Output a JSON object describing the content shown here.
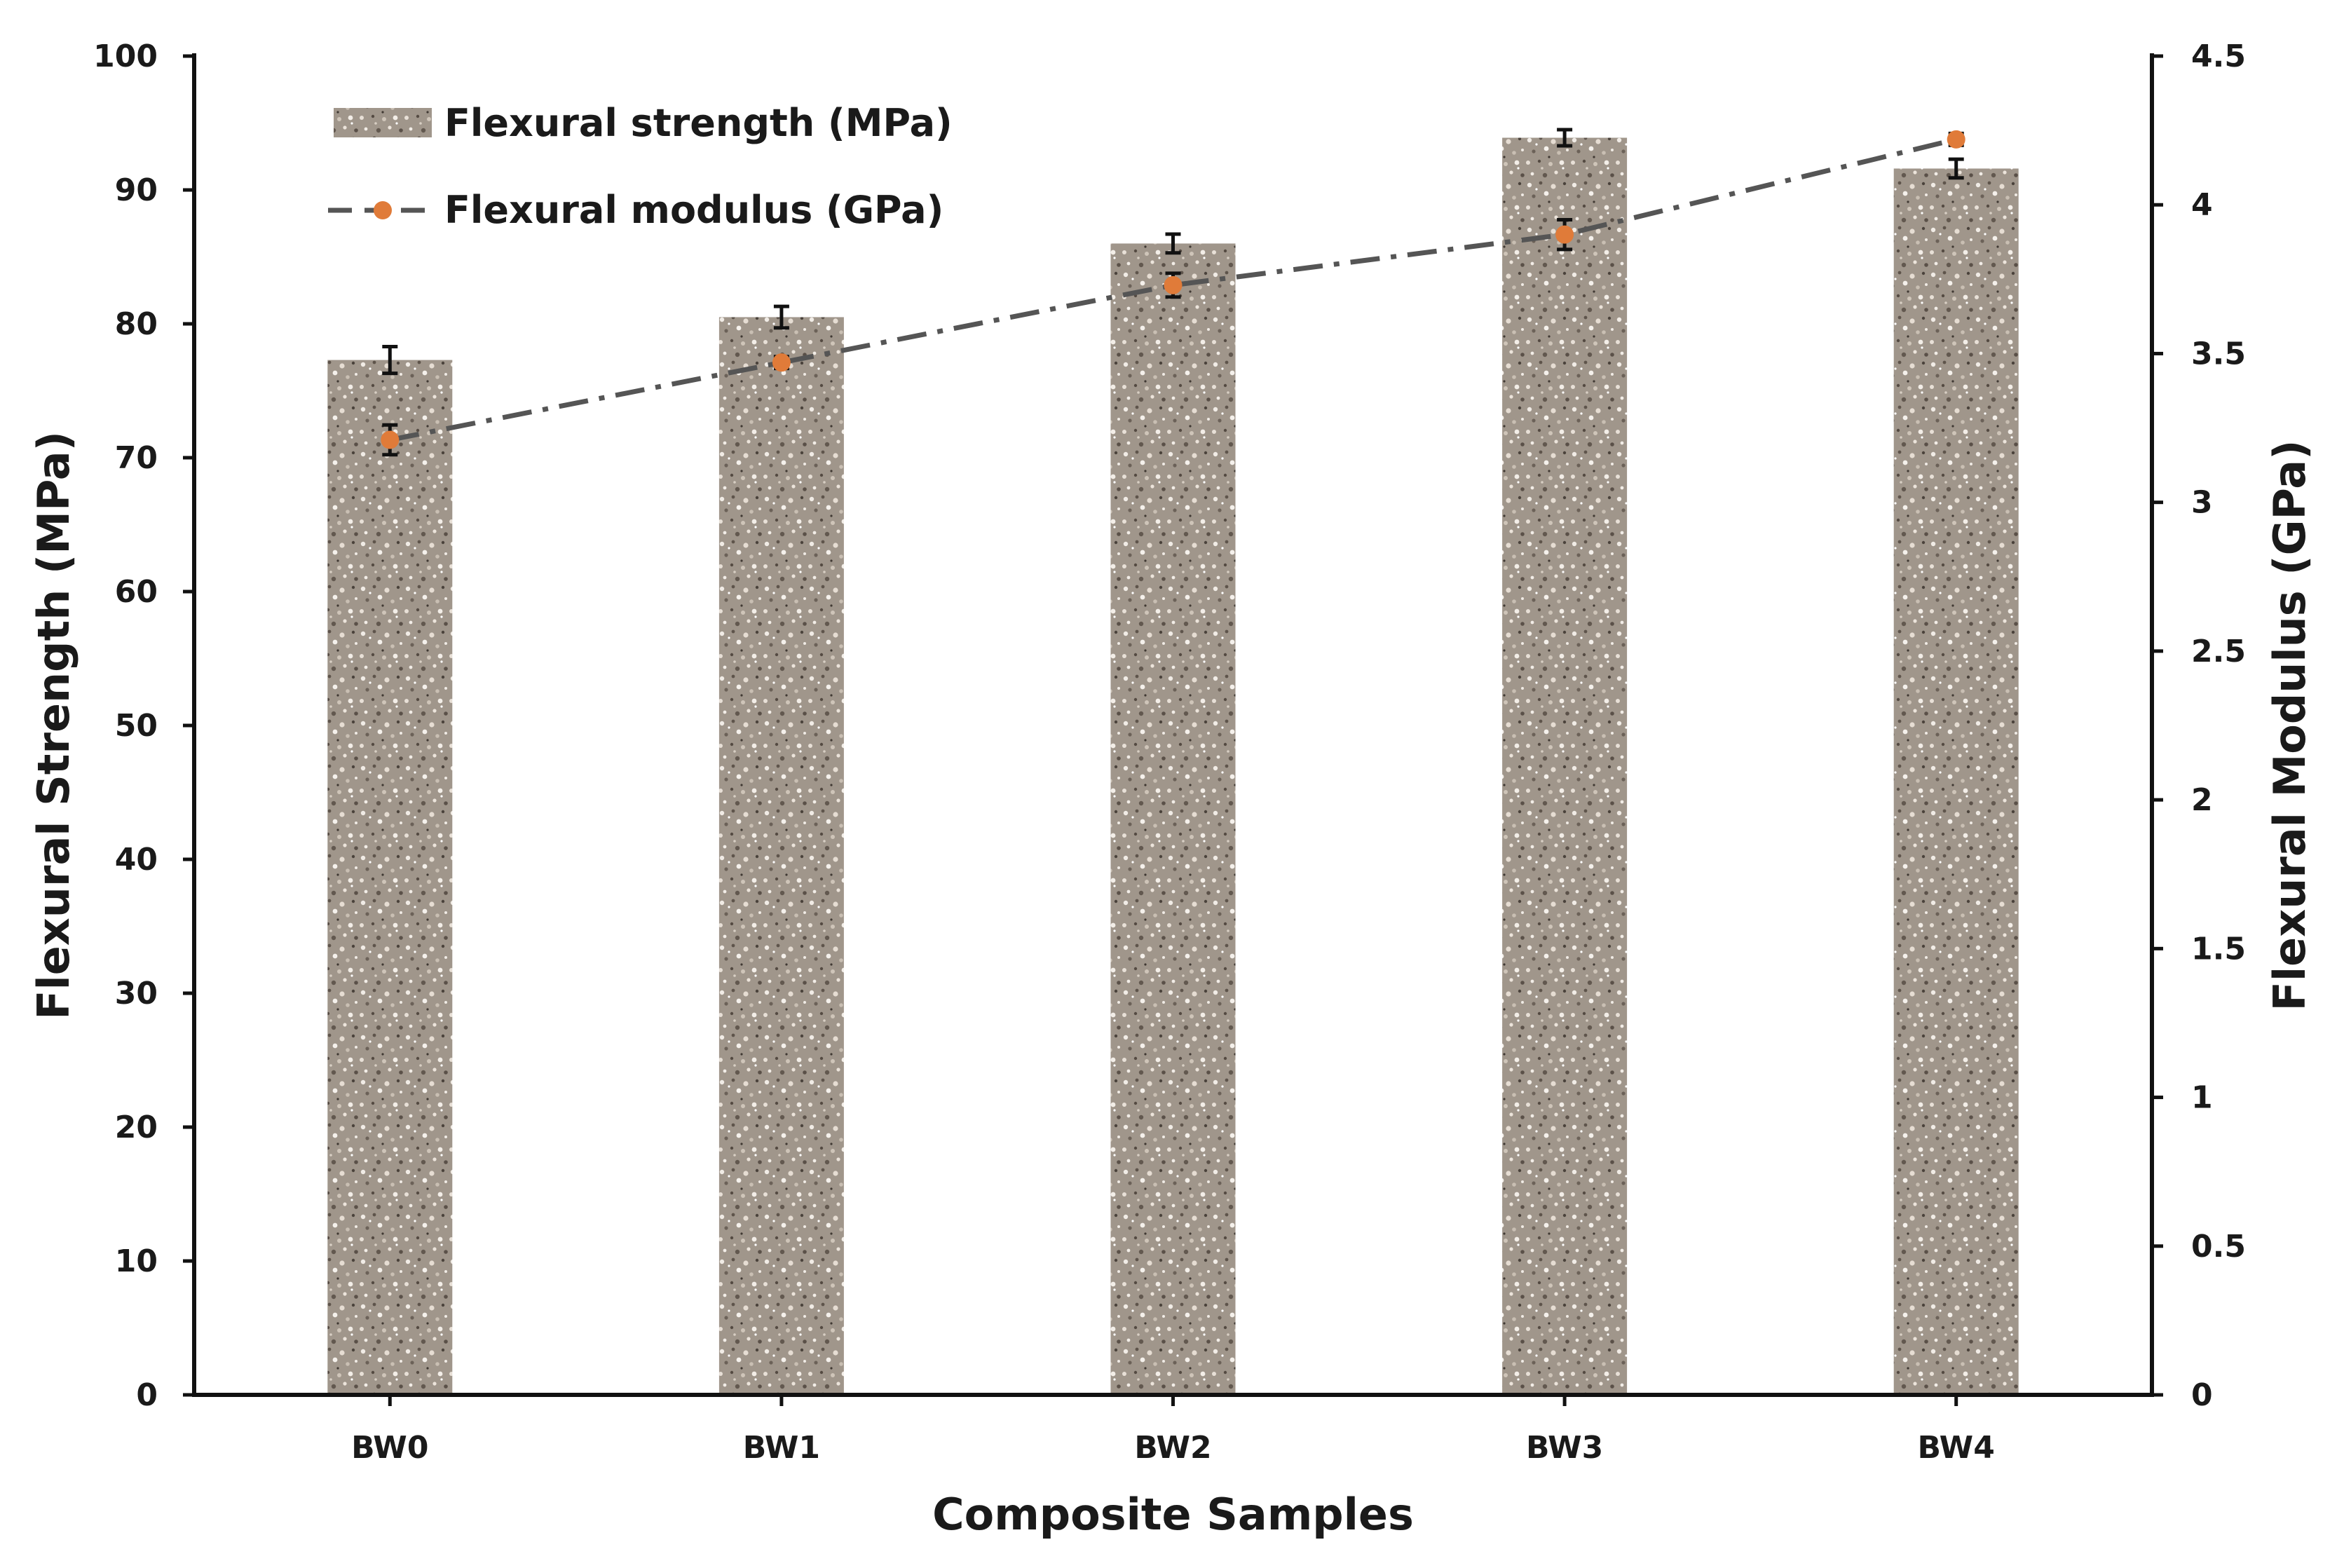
{
  "chart_data": {
    "type": "bar",
    "categories": [
      "BW0",
      "BW1",
      "BW2",
      "BW3",
      "BW4"
    ],
    "xlabel": "Composite Samples",
    "ylabel": "Flexural Strength (MPa)",
    "y2label": "Flexural Modulus (GPa)",
    "ylim": [
      0,
      100
    ],
    "y2lim": [
      0,
      4.5
    ],
    "yticks": [
      "0",
      "10",
      "20",
      "30",
      "40",
      "50",
      "60",
      "70",
      "80",
      "90",
      "100"
    ],
    "y2ticks": [
      "0",
      "0.5",
      "1",
      "1.5",
      "2",
      "2.5",
      "3",
      "3.5",
      "4",
      "4.5"
    ],
    "grid": false,
    "legend_position": "top-left",
    "series": [
      {
        "name": "Flexural strength (MPa)",
        "kind": "bar",
        "axis": "left",
        "values": [
          77.3,
          80.5,
          86.0,
          93.9,
          91.6
        ],
        "errors": [
          1.0,
          0.8,
          0.7,
          0.6,
          0.7
        ],
        "color": "#a0968b"
      },
      {
        "name": "Flexural modulus (GPa)",
        "kind": "line",
        "axis": "right",
        "line_style": "dash-dot",
        "values": [
          3.21,
          3.47,
          3.73,
          3.9,
          4.22
        ],
        "errors": [
          0.05,
          0.02,
          0.04,
          0.05,
          0.02
        ],
        "line_color": "#555555",
        "marker_color": "#e07b39"
      }
    ]
  }
}
